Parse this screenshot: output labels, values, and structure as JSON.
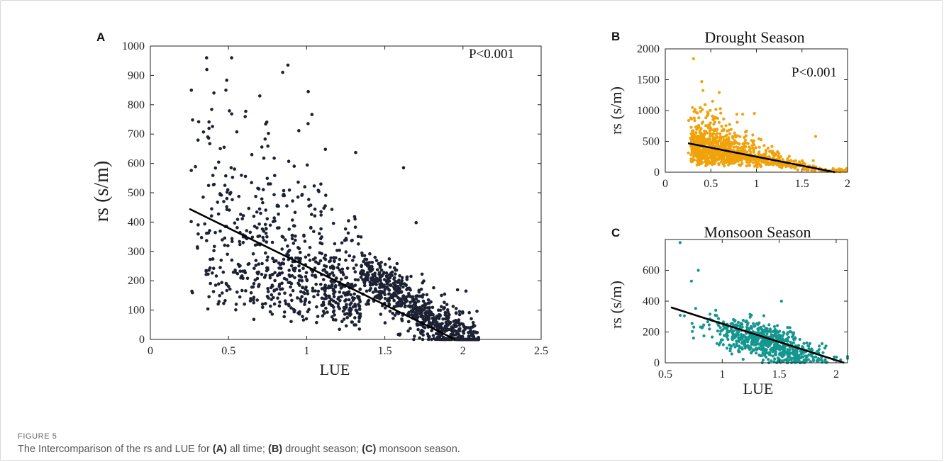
{
  "caption": {
    "label": "FIGURE 5",
    "prefix": "The Intercomparison of the rs and LUE for ",
    "parts": [
      {
        "tag": "(A)",
        "text": " all time; "
      },
      {
        "tag": "(B)",
        "text": " drought season; "
      },
      {
        "tag": "(C)",
        "text": " monsoon season."
      }
    ]
  },
  "colors": {
    "all_time": "#1c2233",
    "drought": "#f0a20a",
    "monsoon": "#15968f",
    "fit_line": "#000000"
  },
  "chart_data": [
    {
      "id": "A",
      "type": "scatter",
      "panel_letter": "A",
      "title": "",
      "annotation": "P<0.001",
      "xlabel": "LUE",
      "ylabel": "rs (s/m)",
      "xlim": [
        0,
        2.5
      ],
      "ylim": [
        0,
        1000
      ],
      "xticks": [
        0,
        0.5,
        1,
        1.5,
        2,
        2.5
      ],
      "xtick_labels": [
        "0",
        "0.5",
        "1",
        "1.5",
        "2",
        "2.5"
      ],
      "yticks": [
        0,
        100,
        200,
        300,
        400,
        500,
        600,
        700,
        800,
        900,
        1000
      ],
      "grid": false,
      "color": "#1c2233",
      "fit_line": {
        "x": [
          0.25,
          1.95
        ],
        "y": [
          445,
          0
        ]
      },
      "point_count_estimate": 1500,
      "cloud": {
        "x_range": [
          0.25,
          2.1
        ],
        "density_peak_x": 1.5,
        "envelope_upper": [
          [
            0.3,
            900
          ],
          [
            0.6,
            700
          ],
          [
            1.0,
            500
          ],
          [
            1.5,
            300
          ],
          [
            2.0,
            100
          ]
        ]
      },
      "notable_points": [
        [
          0.36,
          960
        ],
        [
          0.52,
          960
        ],
        [
          0.88,
          935
        ],
        [
          1.01,
          845
        ],
        [
          0.7,
          830
        ],
        [
          1.62,
          585
        ],
        [
          1.7,
          398
        ],
        [
          1.12,
          648
        ],
        [
          0.27,
          748
        ]
      ]
    },
    {
      "id": "B",
      "type": "scatter",
      "panel_letter": "B",
      "title": "Drought Season",
      "annotation": "P<0.001",
      "xlabel": "",
      "ylabel": "rs (s/m)",
      "xlim": [
        0,
        2
      ],
      "ylim": [
        0,
        2000
      ],
      "xticks": [
        0,
        0.5,
        1,
        1.5,
        2
      ],
      "xtick_labels": [
        "0",
        "0.5",
        "1",
        "1.5",
        "2"
      ],
      "yticks": [
        0,
        500,
        1000,
        1500,
        2000
      ],
      "grid": false,
      "color": "#f0a20a",
      "fit_line": {
        "x": [
          0.25,
          2.0
        ],
        "y": [
          470,
          -40
        ]
      },
      "point_count_estimate": 1100,
      "cloud": {
        "x_range": [
          0.25,
          2.0
        ],
        "density_peak_x": 0.7
      },
      "notable_points": [
        [
          0.31,
          1840
        ],
        [
          0.4,
          1470
        ],
        [
          0.52,
          1150
        ],
        [
          0.85,
          940
        ],
        [
          1.65,
          580
        ],
        [
          1.99,
          60
        ]
      ]
    },
    {
      "id": "C",
      "type": "scatter",
      "panel_letter": "C",
      "title": "Monsoon Season",
      "annotation": "",
      "xlabel": "LUE",
      "ylabel": "rs (s/m)",
      "xlim": [
        0.5,
        2.1
      ],
      "ylim": [
        0,
        800
      ],
      "xticks": [
        0.5,
        1,
        1.5,
        2
      ],
      "xtick_labels": [
        "0.5",
        "1",
        "1.5",
        "2"
      ],
      "yticks": [
        0,
        200,
        400,
        600
      ],
      "grid": false,
      "color": "#15968f",
      "fit_line": {
        "x": [
          0.55,
          2.07
        ],
        "y": [
          360,
          0
        ]
      },
      "point_count_estimate": 700,
      "cloud": {
        "x_range": [
          0.55,
          2.1
        ],
        "density_peak_x": 1.4
      },
      "notable_points": [
        [
          0.63,
          780
        ],
        [
          0.79,
          600
        ],
        [
          0.73,
          530
        ],
        [
          1.52,
          400
        ]
      ]
    }
  ]
}
